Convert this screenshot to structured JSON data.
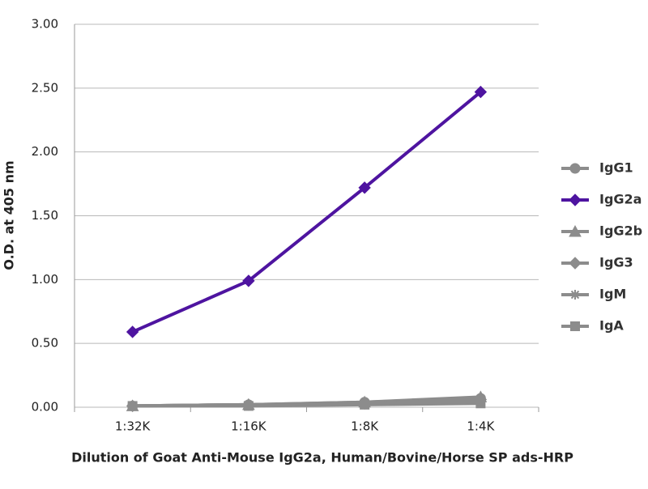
{
  "chart_data": {
    "type": "line",
    "x_label": "Dilution of Goat Anti-Mouse IgG2a, Human/Bovine/Horse SP ads-HRP",
    "y_label": "O.D. at 405 nm",
    "categories": [
      "1:32K",
      "1:16K",
      "1:8K",
      "1:4K"
    ],
    "ylim": [
      0,
      3
    ],
    "yticks": [
      {
        "value": 0,
        "label": "0.00"
      },
      {
        "value": 0.5,
        "label": "0.50"
      },
      {
        "value": 1,
        "label": "1.00"
      },
      {
        "value": 1.5,
        "label": "1.50"
      },
      {
        "value": 2,
        "label": "2.00"
      },
      {
        "value": 2.5,
        "label": "2.50"
      },
      {
        "value": 3,
        "label": "3.00"
      }
    ],
    "grid": true,
    "legend": "right",
    "series": [
      {
        "name": "IgG1",
        "color": "#8c8c8c",
        "marker": "circle",
        "values": [
          0.01,
          0.02,
          0.04,
          0.07
        ]
      },
      {
        "name": "IgG2a",
        "color": "#4e14a0",
        "marker": "diamond",
        "values": [
          0.59,
          0.99,
          1.72,
          2.47
        ]
      },
      {
        "name": "IgG2b",
        "color": "#8c8c8c",
        "marker": "triangle",
        "values": [
          0.01,
          0.02,
          0.04,
          0.08
        ]
      },
      {
        "name": "IgG3",
        "color": "#8c8c8c",
        "marker": "diamond",
        "values": [
          0.01,
          0.02,
          0.03,
          0.06
        ]
      },
      {
        "name": "IgM",
        "color": "#8c8c8c",
        "marker": "star",
        "values": [
          0.01,
          0.02,
          0.03,
          0.05
        ]
      },
      {
        "name": "IgA",
        "color": "#8c8c8c",
        "marker": "square",
        "values": [
          0.01,
          0.01,
          0.02,
          0.03
        ]
      }
    ]
  }
}
